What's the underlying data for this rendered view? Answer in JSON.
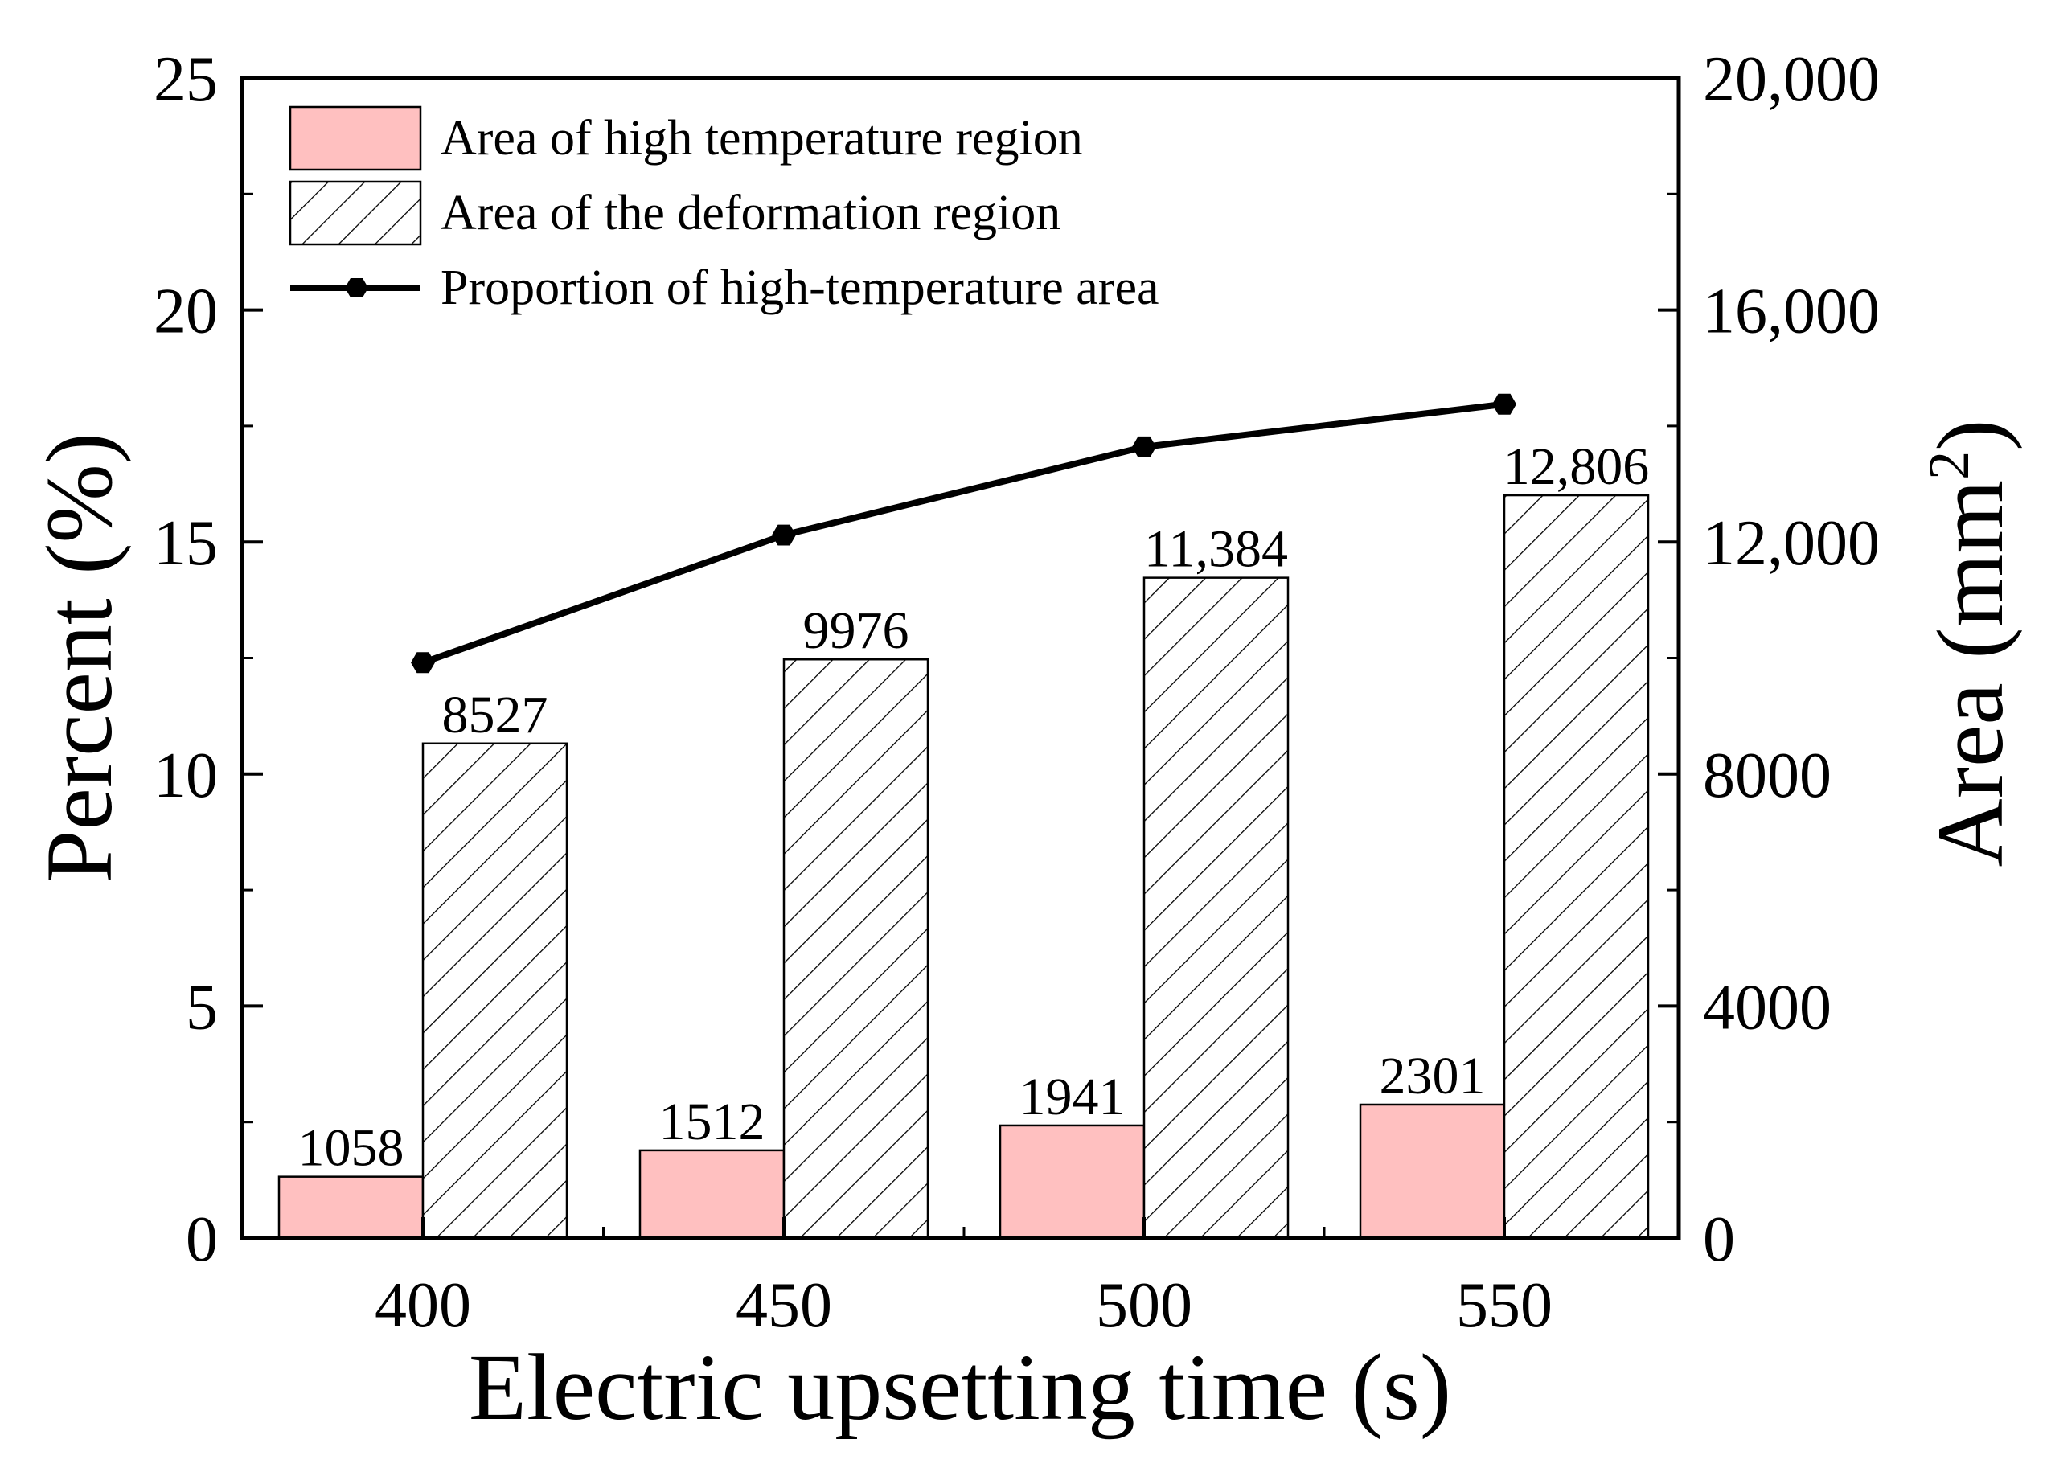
{
  "chart_data": {
    "type": "bar+line",
    "xlabel": "Electric upsetting time (s)",
    "ylabel_left": "Percent (%)",
    "ylabel_right_base": "Area (mm",
    "ylabel_right_sup": "2",
    "ylabel_right_close": ")",
    "categories": [
      "400",
      "450",
      "500",
      "550"
    ],
    "left_axis": {
      "min": 0,
      "max": 25,
      "ticks": [
        "0",
        "5",
        "10",
        "15",
        "20",
        "25"
      ],
      "tick_values": [
        0,
        5,
        10,
        15,
        20,
        25
      ]
    },
    "right_axis": {
      "min": 0,
      "max": 20000,
      "ticks": [
        "0",
        "4000",
        "8000",
        "12,000",
        "16,000",
        "20,000"
      ],
      "tick_values": [
        0,
        4000,
        8000,
        12000,
        16000,
        20000
      ]
    },
    "series": [
      {
        "name": "Area of high temperature region",
        "kind": "bar",
        "axis": "right",
        "color": "#ffc0c0",
        "values": [
          1058,
          1512,
          1941,
          2301
        ],
        "labels": [
          "1058",
          "1512",
          "1941",
          "2301"
        ]
      },
      {
        "name": "Area of the deformation region",
        "kind": "bar-hatched",
        "axis": "right",
        "color": "#ffffff",
        "values": [
          8527,
          9976,
          11384,
          12806
        ],
        "labels": [
          "8527",
          "9976",
          "11,384",
          "12,806"
        ]
      },
      {
        "name": "Proportion of high-temperature area",
        "kind": "line",
        "axis": "left",
        "color": "#000000",
        "marker": "hexagon",
        "values": [
          12.4,
          15.15,
          17.05,
          17.97
        ]
      }
    ],
    "legend_position": "top-left"
  }
}
